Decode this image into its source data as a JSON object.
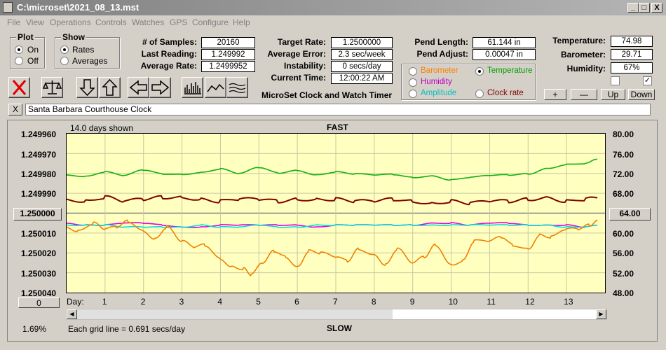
{
  "window": {
    "title": "C:\\microset\\2021_08_13.mst",
    "minimize": "_",
    "maximize": "□",
    "close": "X"
  },
  "menu": [
    "File",
    "View",
    "Operations",
    "Controls",
    "Watches",
    "GPS",
    "Configure",
    "Help"
  ],
  "plot_group": {
    "title": "Plot",
    "options": [
      "On",
      "Off"
    ],
    "selected": "On"
  },
  "show_group": {
    "title": "Show",
    "options": [
      "Rates",
      "Averages"
    ],
    "selected": "Rates"
  },
  "stats": {
    "samples_label": "# of Samples:",
    "samples": "20160",
    "last_reading_label": "Last Reading:",
    "last_reading": "1.249992",
    "avg_rate_label": "Average Rate:",
    "avg_rate": "1.2499952",
    "target_rate_label": "Target Rate:",
    "target_rate": "1.2500000",
    "avg_error_label": "Average Error:",
    "avg_error": "2.3 sec/week",
    "instability_label": "Instability:",
    "instability": "0 secs/day",
    "current_time_label": "Current Time:",
    "current_time": "12:00:22 AM",
    "pend_length_label": "Pend Length:",
    "pend_length": "61.144 in",
    "pend_adjust_label": "Pend Adjust:",
    "pend_adjust": "0.00047 in",
    "temperature_label": "Temperature:",
    "temperature": "74.98",
    "barometer_label": "Barometer:",
    "barometer": "29.71",
    "humidity_label": "Humidity:",
    "humidity": "67%"
  },
  "app_name": "MicroSet Clock and Watch Timer",
  "overlay_group": {
    "options": [
      {
        "label": "Barometer",
        "color": "#ff8000"
      },
      {
        "label": "Temperature",
        "color": "#00a000"
      },
      {
        "label": "Humidity",
        "color": "#c000c0"
      },
      {
        "label": "Amplitude",
        "color": "#00c0c0"
      },
      {
        "label": "Clock rate",
        "color": "#800000"
      }
    ],
    "selected": "Temperature"
  },
  "scale_buttons": {
    "plus": "+",
    "minus": "—",
    "up": "Up",
    "down": "Down"
  },
  "clock_name": "Santa Barbara Courthouse Clock",
  "clear_button": "X",
  "graph": {
    "days_shown": "14.0 days shown",
    "fast_label": "FAST",
    "slow_label": "SLOW",
    "center_left_button": "1.250000",
    "center_right_button": "64.00",
    "offset_button": "0",
    "percent": "1.69%",
    "grid_note": "Each grid line = 0.691 secs/day",
    "day_label": "Day:"
  },
  "chart_data": {
    "type": "line",
    "title": "",
    "xlabel": "Day:",
    "x_ticks": [
      "1",
      "2",
      "3",
      "4",
      "5",
      "6",
      "7",
      "8",
      "9",
      "10",
      "11",
      "12",
      "13"
    ],
    "left_axis": {
      "ticks": [
        "1.249960",
        "1.249970",
        "1.249980",
        "1.249990",
        "1.250000",
        "1.250010",
        "1.250020",
        "1.250030",
        "1.250040"
      ],
      "ylim": [
        1.25004,
        1.24996
      ],
      "grid": true
    },
    "right_axis": {
      "ticks": [
        "80.00",
        "76.00",
        "72.00",
        "68.00",
        "64.00",
        "60.00",
        "56.00",
        "52.00",
        "48.00"
      ],
      "ylim": [
        48,
        80
      ]
    },
    "xlim": [
      0,
      14
    ],
    "series": [
      {
        "name": "Temperature",
        "color": "#10b010",
        "axis": "right",
        "x": [
          0,
          0.5,
          1,
          1.5,
          2,
          2.5,
          3,
          3.5,
          4,
          4.5,
          5,
          5.5,
          6,
          6.5,
          7,
          7.5,
          8,
          8.5,
          9,
          9.5,
          10,
          10.5,
          11,
          11.5,
          12,
          12.5,
          13,
          13.5,
          13.8
        ],
        "y": [
          71.7,
          71.4,
          72.3,
          71.6,
          72.7,
          71.9,
          71.8,
          72.2,
          72.9,
          72.0,
          73.2,
          72.1,
          72.6,
          71.7,
          72.3,
          71.9,
          71.7,
          71.8,
          71.2,
          71.5,
          70.7,
          71.2,
          71.6,
          71.7,
          71.9,
          73.0,
          73.8,
          74.0,
          74.9
        ]
      },
      {
        "name": "Clock rate",
        "color": "#800000",
        "axis": "left",
        "x": [
          0,
          0.5,
          1,
          1.5,
          2,
          2.5,
          3,
          3.5,
          4,
          4.5,
          5,
          5.5,
          6,
          6.5,
          7,
          7.5,
          8,
          8.5,
          9,
          9.5,
          10,
          10.5,
          11,
          11.5,
          12,
          12.5,
          13,
          13.5,
          13.8
        ],
        "y": [
          1.249993,
          1.249994,
          1.249992,
          1.249994,
          1.249993,
          1.249992,
          1.249992,
          1.249993,
          1.249994,
          1.249993,
          1.249993,
          1.249994,
          1.249993,
          1.249993,
          1.249993,
          1.249994,
          1.249994,
          1.249993,
          1.249994,
          1.249995,
          1.249994,
          1.249995,
          1.249994,
          1.249994,
          1.249993,
          1.249992,
          1.249994,
          1.249993,
          1.249992
        ]
      },
      {
        "name": "Humidity",
        "color": "#e000e0",
        "axis": "left",
        "x": [
          0,
          0.5,
          1,
          1.5,
          2,
          2.5,
          3,
          3.5,
          4,
          4.5,
          5,
          5.5,
          6,
          6.5,
          7,
          7.5,
          8,
          8.5,
          9,
          9.5,
          10,
          10.5,
          11,
          11.5,
          12,
          12.5,
          13,
          13.5,
          13.8
        ],
        "y": [
          1.250005,
          1.250006,
          1.250006,
          1.250005,
          1.250005,
          1.250006,
          1.250007,
          1.250007,
          1.250006,
          1.250006,
          1.250006,
          1.250006,
          1.250006,
          1.250007,
          1.250006,
          1.250006,
          1.250006,
          1.250006,
          1.250006,
          1.250005,
          1.250005,
          1.250006,
          1.250005,
          1.250005,
          1.250006,
          1.250006,
          1.250006,
          1.250007,
          1.250006
        ]
      },
      {
        "name": "Amplitude",
        "color": "#00e0e0",
        "axis": "left",
        "x": [
          0,
          0.5,
          1,
          1.5,
          2,
          2.5,
          3,
          3.5,
          4,
          4.5,
          5,
          5.5,
          6,
          6.5,
          7,
          7.5,
          8,
          8.5,
          9,
          9.5,
          10,
          10.5,
          11,
          11.5,
          12,
          12.5,
          13,
          13.5,
          13.8
        ],
        "y": [
          1.250006,
          1.250006,
          1.250006,
          1.250007,
          1.250007,
          1.250007,
          1.250007,
          1.250006,
          1.250007,
          1.250007,
          1.250006,
          1.250007,
          1.250007,
          1.250006,
          1.250006,
          1.250006,
          1.250006,
          1.250006,
          1.250006,
          1.250006,
          1.250006,
          1.250006,
          1.250006,
          1.250006,
          1.250006,
          1.250006,
          1.250007,
          1.250007,
          1.250006
        ]
      },
      {
        "name": "Barometer",
        "color": "#f08000",
        "axis": "left",
        "x": [
          0,
          0.3,
          0.7,
          1,
          1.3,
          1.6,
          2,
          2.3,
          2.6,
          3,
          3.3,
          3.6,
          4,
          4.3,
          4.6,
          4.8,
          5.1,
          5.4,
          5.7,
          6,
          6.3,
          6.6,
          7,
          7.3,
          7.6,
          8,
          8.3,
          8.6,
          9,
          9.3,
          9.6,
          10,
          10.3,
          10.6,
          11,
          11.3,
          11.6,
          12,
          12.3,
          12.6,
          13,
          13.3,
          13.6,
          13.8
        ],
        "y": [
          1.250007,
          1.250009,
          1.250005,
          1.250008,
          1.250007,
          1.250004,
          1.250009,
          1.250013,
          1.250007,
          1.250014,
          1.250017,
          1.250016,
          1.250023,
          1.250027,
          1.250028,
          1.250031,
          1.250025,
          1.250019,
          1.250022,
          1.250027,
          1.250019,
          1.25002,
          1.250022,
          1.250024,
          1.250018,
          1.250021,
          1.250026,
          1.250018,
          1.250025,
          1.250022,
          1.250016,
          1.250026,
          1.250024,
          1.250014,
          1.250014,
          1.250012,
          1.250016,
          1.250018,
          1.250011,
          1.250012,
          1.250008,
          1.250008,
          1.250006,
          1.250004
        ]
      }
    ]
  }
}
